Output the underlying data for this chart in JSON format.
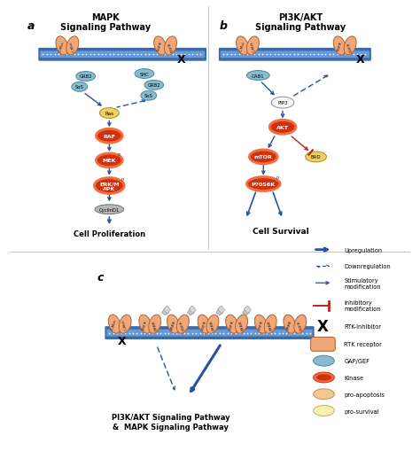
{
  "bg_color": "#ffffff",
  "membrane_color": "#3a6aaa",
  "membrane_mid_color": "#6a9ad5",
  "receptor_color": "#f0a878",
  "receptor_stroke": "#b06030",
  "kinase_outer_color": "#f07040",
  "kinase_inner_color": "#d03010",
  "gap_gef_color": "#88bbd0",
  "gap_gef_stroke": "#4888a0",
  "yellow_node_color": "#f0d060",
  "yellow_node_stroke": "#b08820",
  "gray_node_color": "#b8b8b8",
  "gray_node_stroke": "#707070",
  "white_node_color": "#f8f8f8",
  "white_node_stroke": "#909090",
  "arrow_blue": "#2a50a0",
  "inhibit_red": "#c02020",
  "legend_rtk_color": "#f0a878",
  "legend_gap_color": "#88bbd0",
  "legend_kinase_outer": "#f07040",
  "legend_kinase_inner": "#d03010",
  "legend_proapop_color": "#f0c890",
  "legend_prosurvival_color": "#f8f0b0",
  "section_a_title": "MAPK\nSignaling Pathway",
  "section_b_title": "PI3K/AKT\nSignaling Pathway",
  "section_c_title": "PI3K/AKT Signaling Pathway\n&  MAPK Signaling Pathway"
}
